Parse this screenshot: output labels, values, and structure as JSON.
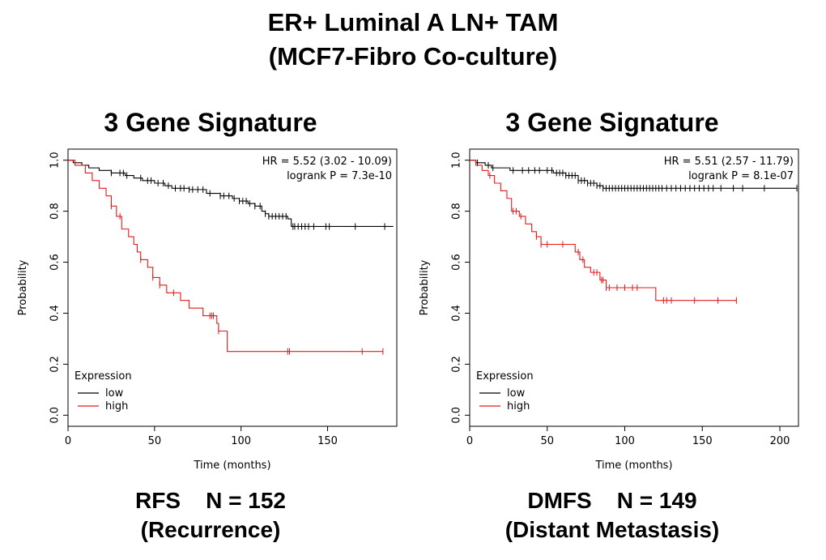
{
  "title_line1": "ER+ Luminal A LN+ TAM",
  "title_line2": "(MCF7-Fibro Co-culture)",
  "chart_data": [
    {
      "type": "line",
      "subtitle": "3 Gene Signature",
      "xlabel": "Time (months)",
      "ylabel": "Probability",
      "xlim": [
        0,
        190
      ],
      "ylim": [
        0,
        1
      ],
      "xticks": [
        0,
        50,
        100,
        150
      ],
      "yticks": [
        0.0,
        0.2,
        0.4,
        0.6,
        0.8,
        1.0
      ],
      "annotation_hr": "HR = 5.52 (3.02 - 10.09)",
      "annotation_p": "logrank P = 7.3e-10",
      "legend_title": "Expression",
      "legend_position": "bottom-left",
      "caption_line1": "RFS    N = 152",
      "caption_line2": "(Recurrence)",
      "series": [
        {
          "name": "low",
          "color": "#000000",
          "steps": [
            [
              0,
              1.0
            ],
            [
              3,
              0.99
            ],
            [
              8,
              0.98
            ],
            [
              12,
              0.97
            ],
            [
              18,
              0.96
            ],
            [
              25,
              0.95
            ],
            [
              33,
              0.94
            ],
            [
              38,
              0.93
            ],
            [
              43,
              0.92
            ],
            [
              50,
              0.91
            ],
            [
              56,
              0.9
            ],
            [
              60,
              0.89
            ],
            [
              70,
              0.885
            ],
            [
              80,
              0.87
            ],
            [
              88,
              0.86
            ],
            [
              95,
              0.85
            ],
            [
              99,
              0.84
            ],
            [
              104,
              0.83
            ],
            [
              108,
              0.82
            ],
            [
              112,
              0.8
            ],
            [
              114,
              0.79
            ],
            [
              116,
              0.78
            ],
            [
              127,
              0.77
            ],
            [
              129,
              0.74
            ],
            [
              188,
              0.74
            ]
          ],
          "censors": [
            25,
            30,
            32,
            34,
            42,
            46,
            48,
            52,
            55,
            58,
            62,
            65,
            67,
            70,
            72,
            75,
            78,
            82,
            88,
            90,
            93,
            96,
            99,
            101,
            103,
            105,
            108,
            111,
            114,
            116,
            118,
            120,
            122,
            124,
            126,
            130,
            131,
            133,
            135,
            137,
            139,
            142,
            149,
            151,
            166,
            183
          ]
        },
        {
          "name": "high",
          "color": "#e31a1c",
          "steps": [
            [
              0,
              1.0
            ],
            [
              4,
              0.98
            ],
            [
              10,
              0.95
            ],
            [
              14,
              0.92
            ],
            [
              18,
              0.89
            ],
            [
              22,
              0.86
            ],
            [
              25,
              0.82
            ],
            [
              28,
              0.78
            ],
            [
              31,
              0.73
            ],
            [
              35,
              0.7
            ],
            [
              38,
              0.67
            ],
            [
              40,
              0.64
            ],
            [
              42,
              0.61
            ],
            [
              46,
              0.58
            ],
            [
              49,
              0.54
            ],
            [
              53,
              0.51
            ],
            [
              57,
              0.48
            ],
            [
              65,
              0.45
            ],
            [
              70,
              0.42
            ],
            [
              78,
              0.39
            ],
            [
              86,
              0.36
            ],
            [
              87,
              0.33
            ],
            [
              92,
              0.25
            ],
            [
              182,
              0.25
            ]
          ],
          "censors": [
            25,
            30,
            42,
            49,
            53,
            61,
            82,
            83,
            84,
            87,
            127,
            128,
            170,
            182
          ]
        }
      ]
    },
    {
      "type": "line",
      "subtitle": "3 Gene Signature",
      "xlabel": "Time (months)",
      "ylabel": "Probability",
      "xlim": [
        0,
        212
      ],
      "ylim": [
        0,
        1
      ],
      "xticks": [
        0,
        50,
        100,
        150,
        200
      ],
      "yticks": [
        0.0,
        0.2,
        0.4,
        0.6,
        0.8,
        1.0
      ],
      "annotation_hr": "HR = 5.51 (2.57 - 11.79)",
      "annotation_p": "logrank P = 8.1e-07",
      "legend_title": "Expression",
      "legend_position": "bottom-left",
      "caption_line1": "DMFS    N = 149",
      "caption_line2": "(Distant Metastasis)",
      "series": [
        {
          "name": "low",
          "color": "#000000",
          "steps": [
            [
              0,
              1.0
            ],
            [
              4,
              0.99
            ],
            [
              10,
              0.98
            ],
            [
              14,
              0.97
            ],
            [
              26,
              0.96
            ],
            [
              54,
              0.95
            ],
            [
              62,
              0.94
            ],
            [
              70,
              0.92
            ],
            [
              76,
              0.91
            ],
            [
              82,
              0.9
            ],
            [
              86,
              0.89
            ],
            [
              211,
              0.89
            ]
          ],
          "censors": [
            5,
            12,
            15,
            28,
            34,
            38,
            42,
            45,
            50,
            53,
            56,
            58,
            60,
            62,
            64,
            66,
            68,
            70,
            72,
            74,
            76,
            78,
            80,
            82,
            84,
            86,
            88,
            90,
            92,
            94,
            96,
            98,
            100,
            102,
            104,
            106,
            108,
            110,
            112,
            114,
            116,
            118,
            120,
            122,
            124,
            127,
            130,
            133,
            136,
            139,
            142,
            145,
            148,
            151,
            154,
            157,
            162,
            170,
            176,
            190,
            211
          ]
        },
        {
          "name": "high",
          "color": "#e31a1c",
          "steps": [
            [
              0,
              1.0
            ],
            [
              4,
              0.98
            ],
            [
              8,
              0.96
            ],
            [
              12,
              0.94
            ],
            [
              16,
              0.91
            ],
            [
              20,
              0.88
            ],
            [
              24,
              0.85
            ],
            [
              27,
              0.8
            ],
            [
              32,
              0.78
            ],
            [
              36,
              0.75
            ],
            [
              40,
              0.72
            ],
            [
              43,
              0.7
            ],
            [
              46,
              0.67
            ],
            [
              68,
              0.64
            ],
            [
              71,
              0.61
            ],
            [
              74,
              0.58
            ],
            [
              78,
              0.56
            ],
            [
              84,
              0.53
            ],
            [
              88,
              0.5
            ],
            [
              120,
              0.45
            ],
            [
              172,
              0.45
            ]
          ],
          "censors": [
            13,
            28,
            30,
            33,
            43,
            46,
            50,
            60,
            70,
            73,
            80,
            82,
            85,
            86,
            88,
            90,
            95,
            100,
            105,
            108,
            125,
            127,
            130,
            145,
            160,
            172
          ]
        }
      ]
    }
  ]
}
